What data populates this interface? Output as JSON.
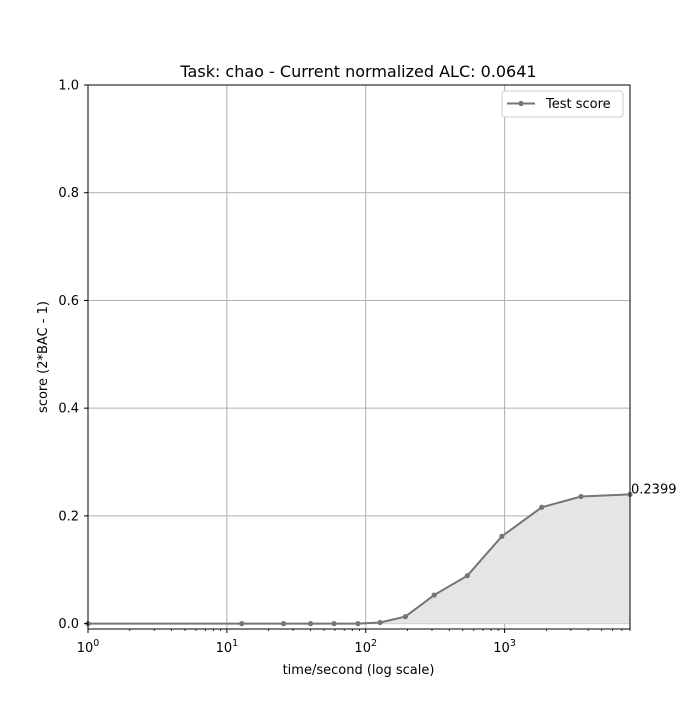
{
  "chart_data": {
    "type": "line",
    "title": "Task: chao - Current normalized ALC: 0.0641",
    "xlabel": "time/second (log scale)",
    "ylabel": "score (2*BAC - 1)",
    "xscale": "log",
    "xlim": [
      1,
      8000
    ],
    "ylim": [
      -0.01,
      1.0
    ],
    "x_ticks": [
      {
        "value": 1,
        "base": "10",
        "exp": "0"
      },
      {
        "value": 10,
        "base": "10",
        "exp": "1"
      },
      {
        "value": 100,
        "base": "10",
        "exp": "2"
      },
      {
        "value": 1000,
        "base": "10",
        "exp": "3"
      }
    ],
    "y_ticks": [
      {
        "value": 0.0,
        "label": "0.0"
      },
      {
        "value": 0.2,
        "label": "0.2"
      },
      {
        "value": 0.4,
        "label": "0.4"
      },
      {
        "value": 0.6,
        "label": "0.6"
      },
      {
        "value": 0.8,
        "label": "0.8"
      },
      {
        "value": 1.0,
        "label": "1.0"
      }
    ],
    "grid": true,
    "legend_position": "top-right",
    "fill_under": true,
    "series": [
      {
        "name": "Test score",
        "color": "#757575",
        "fill_color": "#e5e5e5",
        "x": [
          1,
          12.8,
          25.6,
          40.1,
          59.2,
          87.9,
          127,
          193,
          311,
          539,
          955,
          1850,
          3550,
          8000
        ],
        "y": [
          0.0,
          0.0,
          0.0,
          0.0,
          0.0,
          0.0,
          0.002,
          0.013,
          0.053,
          0.089,
          0.162,
          0.216,
          0.236,
          0.2399
        ]
      }
    ],
    "annotations": [
      {
        "text": "0.2399",
        "x": 8000,
        "y": 0.2399
      }
    ]
  }
}
